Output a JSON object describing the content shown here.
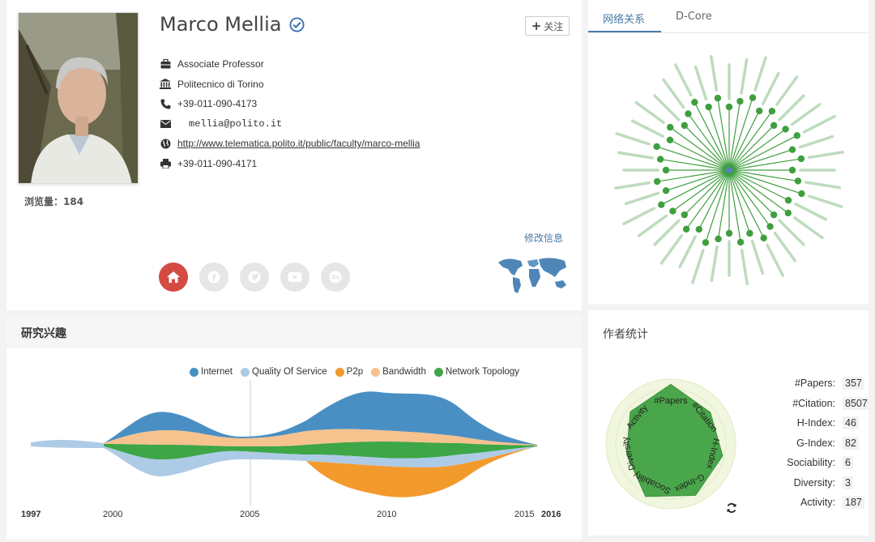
{
  "profile": {
    "name": "Marco Mellia",
    "follow_label": "关注",
    "views_label": "浏览量：",
    "views_count": "184",
    "position": "Associate Professor",
    "affiliation": "Politecnico di Torino",
    "phone": "+39-011-090-4173",
    "email": "mellia@polito.it",
    "homepage": "http://www.telematica.polito.it/public/faculty/marco-mellia",
    "fax": "+39-011-090-4171",
    "edit_link": "修改信息"
  },
  "network": {
    "tabs": [
      {
        "label": "网络关系"
      },
      {
        "label": "D-Core"
      }
    ],
    "node_color": "#3f9f3f",
    "center_color": "#5b7fbf"
  },
  "interests": {
    "title": "研究兴趣",
    "legend": [
      {
        "name": "Internet",
        "color": "#4a8fc4"
      },
      {
        "name": "Quality Of Service",
        "color": "#aecbe6"
      },
      {
        "name": "P2p",
        "color": "#f39a2c"
      },
      {
        "name": "Bandwidth",
        "color": "#f6c28e"
      },
      {
        "name": "Network Topology",
        "color": "#3ea647"
      }
    ],
    "years": {
      "start": "1997",
      "y2000": "2000",
      "y2005": "2005",
      "y2010": "2010",
      "y2015": "2015",
      "end": "2016"
    }
  },
  "stats": {
    "title": "作者统计",
    "rows": [
      {
        "label": "#Papers:",
        "value": "357"
      },
      {
        "label": "#Citation:",
        "value": "8507"
      },
      {
        "label": "H-Index:",
        "value": "46"
      },
      {
        "label": "G-Index:",
        "value": "82"
      },
      {
        "label": "Sociability:",
        "value": "6"
      },
      {
        "label": "Diversity:",
        "value": "3"
      },
      {
        "label": "Activity:",
        "value": "187"
      }
    ],
    "radar_labels": [
      "#Papers",
      "#Citation",
      "H-Index",
      "G-Index",
      "Sociability",
      "Diversity",
      "Activity"
    ],
    "radar_color": "#4aa64a"
  }
}
